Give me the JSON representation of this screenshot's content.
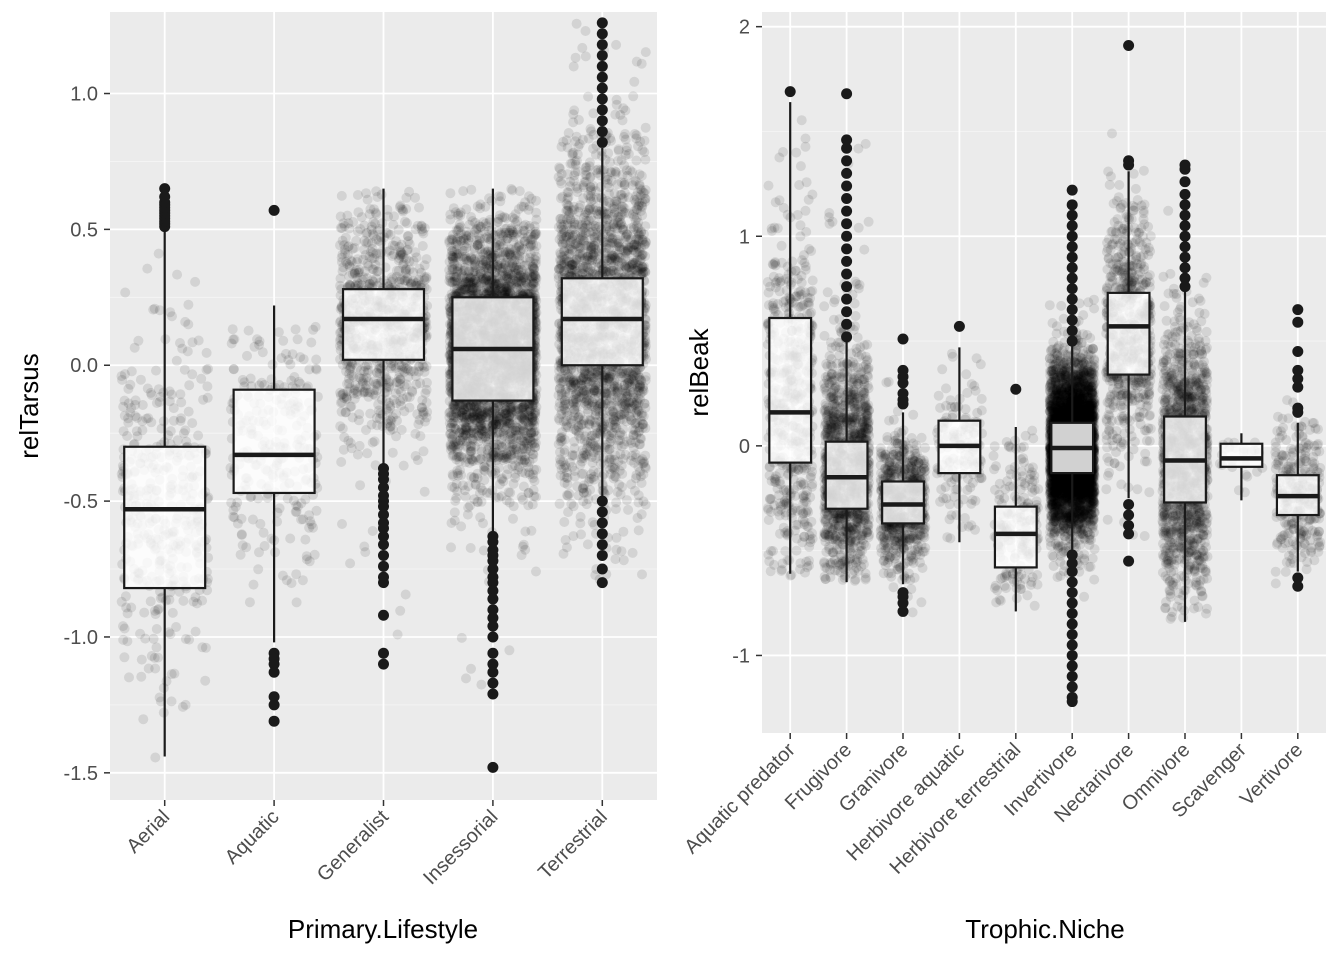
{
  "chart_data": [
    {
      "type": "boxplot",
      "xlabel": "Primary.Lifestyle",
      "ylabel": "relTarsus",
      "ylim": [
        -1.6,
        1.3
      ],
      "yticks": [
        -1.5,
        -1.0,
        -0.5,
        0.0,
        0.5,
        1.0
      ],
      "ytick_labels": [
        "-1.5",
        "-1.0",
        "-0.5",
        "0.0",
        "0.5",
        "1.0"
      ],
      "grid": true,
      "categories": [
        "Aerial",
        "Aquatic",
        "Generalist",
        "Insessorial",
        "Terrestrial"
      ],
      "boxes": [
        {
          "q1": -0.82,
          "median": -0.53,
          "q3": -0.3,
          "whisker_low": -1.44,
          "whisker_high": 0.5,
          "outliers": [
            0.51,
            0.52,
            0.53,
            0.54,
            0.55,
            0.56,
            0.57,
            0.58,
            0.59,
            0.6,
            0.62,
            0.65
          ],
          "jitter": {
            "n": 420,
            "min": -1.45,
            "max": 0.62,
            "center": -0.53,
            "spread": 0.32
          }
        },
        {
          "q1": -0.47,
          "median": -0.33,
          "q3": -0.09,
          "whisker_low": -1.02,
          "whisker_high": 0.22,
          "outliers": [
            0.57,
            -1.06,
            -1.08,
            -1.1,
            -1.13,
            -1.22,
            -1.25,
            -1.31
          ],
          "jitter": {
            "n": 260,
            "min": -1.3,
            "max": 0.22,
            "center": -0.3,
            "spread": 0.25
          }
        },
        {
          "q1": 0.02,
          "median": 0.17,
          "q3": 0.28,
          "whisker_low": -0.37,
          "whisker_high": 0.65,
          "outliers": [
            -0.38,
            -0.4,
            -0.42,
            -0.45,
            -0.48,
            -0.5,
            -0.52,
            -0.55,
            -0.58,
            -0.6,
            -0.63,
            -0.66,
            -0.7,
            -0.74,
            -0.78,
            -0.8,
            -0.92,
            -1.06,
            -1.1
          ],
          "jitter": {
            "n": 900,
            "min": -1.0,
            "max": 0.65,
            "center": 0.17,
            "spread": 0.22
          }
        },
        {
          "q1": -0.13,
          "median": 0.06,
          "q3": 0.25,
          "whisker_low": -0.62,
          "whisker_high": 0.65,
          "outliers": [
            -0.63,
            -0.65,
            -0.68,
            -0.7,
            -0.72,
            -0.75,
            -0.78,
            -0.8,
            -0.83,
            -0.86,
            -0.9,
            -0.93,
            -0.96,
            -1.0,
            -1.06,
            -1.1,
            -1.13,
            -1.17,
            -1.21,
            -1.48
          ],
          "jitter": {
            "n": 3200,
            "min": -1.2,
            "max": 0.65,
            "center": 0.06,
            "spread": 0.24
          }
        },
        {
          "q1": 0.0,
          "median": 0.17,
          "q3": 0.32,
          "whisker_low": -0.49,
          "whisker_high": 0.8,
          "outliers": [
            0.82,
            0.86,
            0.9,
            0.94,
            0.98,
            1.02,
            1.06,
            1.1,
            1.14,
            1.18,
            1.22,
            1.26,
            -0.5,
            -0.54,
            -0.58,
            -0.62,
            -0.66,
            -0.7,
            -0.75,
            -0.8
          ],
          "jitter": {
            "n": 2200,
            "min": -0.8,
            "max": 1.26,
            "center": 0.17,
            "spread": 0.32
          }
        }
      ]
    },
    {
      "type": "boxplot",
      "xlabel": "Trophic.Niche",
      "ylabel": "relBeak",
      "ylim": [
        -1.37,
        2.07
      ],
      "yticks": [
        -1,
        0,
        1,
        2
      ],
      "ytick_labels": [
        "-1",
        "0",
        "1",
        "2"
      ],
      "grid": true,
      "categories": [
        "Aquatic predator",
        "Frugivore",
        "Granivore",
        "Herbivore aquatic",
        "Herbivore terrestrial",
        "Invertivore",
        "Nectarivore",
        "Omnivore",
        "Scavenger",
        "Vertivore"
      ],
      "boxes": [
        {
          "q1": -0.08,
          "median": 0.16,
          "q3": 0.61,
          "whisker_low": -0.61,
          "whisker_high": 1.64,
          "outliers": [
            1.69
          ],
          "jitter": {
            "n": 550,
            "min": -0.62,
            "max": 1.66,
            "center": 0.2,
            "spread": 0.45
          }
        },
        {
          "q1": -0.3,
          "median": -0.15,
          "q3": 0.02,
          "whisker_low": -0.65,
          "whisker_high": 0.5,
          "outliers": [
            0.52,
            0.58,
            0.64,
            0.7,
            0.76,
            0.82,
            0.88,
            0.94,
            1.0,
            1.06,
            1.12,
            1.18,
            1.24,
            1.3,
            1.36,
            1.42,
            1.46,
            1.68
          ],
          "jitter": {
            "n": 1200,
            "min": -0.65,
            "max": 1.45,
            "center": -0.12,
            "spread": 0.28
          }
        },
        {
          "q1": -0.37,
          "median": -0.28,
          "q3": -0.17,
          "whisker_low": -0.66,
          "whisker_high": 0.16,
          "outliers": [
            0.2,
            0.22,
            0.25,
            0.3,
            0.33,
            0.36,
            0.51,
            -0.7,
            -0.72,
            -0.75,
            -0.79
          ],
          "jitter": {
            "n": 700,
            "min": -0.8,
            "max": 0.35,
            "center": -0.27,
            "spread": 0.16
          }
        },
        {
          "q1": -0.13,
          "median": 0.0,
          "q3": 0.12,
          "whisker_low": -0.46,
          "whisker_high": 0.47,
          "outliers": [
            0.57
          ],
          "jitter": {
            "n": 150,
            "min": -0.46,
            "max": 0.5,
            "center": 0.0,
            "spread": 0.18
          }
        },
        {
          "q1": -0.58,
          "median": -0.42,
          "q3": -0.29,
          "whisker_low": -0.79,
          "whisker_high": 0.09,
          "outliers": [
            0.27
          ],
          "jitter": {
            "n": 200,
            "min": -0.79,
            "max": 0.1,
            "center": -0.42,
            "spread": 0.2
          }
        },
        {
          "q1": -0.13,
          "median": -0.01,
          "q3": 0.11,
          "whisker_low": -0.5,
          "whisker_high": 0.48,
          "outliers": [
            0.5,
            0.55,
            0.6,
            0.65,
            0.7,
            0.75,
            0.8,
            0.85,
            0.9,
            0.95,
            1.0,
            1.05,
            1.1,
            1.15,
            1.22,
            -0.52,
            -0.56,
            -0.6,
            -0.65,
            -0.7,
            -0.75,
            -0.8,
            -0.85,
            -0.9,
            -0.95,
            -1.0,
            -1.05,
            -1.1,
            -1.15,
            -1.2,
            -1.22
          ],
          "jitter": {
            "n": 4200,
            "min": -1.22,
            "max": 1.2,
            "center": -0.01,
            "spread": 0.2
          }
        },
        {
          "q1": 0.34,
          "median": 0.57,
          "q3": 0.73,
          "whisker_low": -0.25,
          "whisker_high": 1.31,
          "outliers": [
            1.34,
            1.36,
            1.91,
            -0.28,
            -0.33,
            -0.38,
            -0.42,
            -0.55
          ],
          "jitter": {
            "n": 650,
            "min": -0.5,
            "max": 1.5,
            "center": 0.55,
            "spread": 0.3
          }
        },
        {
          "q1": -0.27,
          "median": -0.07,
          "q3": 0.14,
          "whisker_low": -0.84,
          "whisker_high": 0.74,
          "outliers": [
            0.76,
            0.8,
            0.85,
            0.9,
            0.95,
            1.0,
            1.05,
            1.1,
            1.15,
            1.2,
            1.26,
            1.32,
            1.34
          ],
          "jitter": {
            "n": 1300,
            "min": -0.84,
            "max": 1.32,
            "center": -0.07,
            "spread": 0.32
          }
        },
        {
          "q1": -0.1,
          "median": -0.06,
          "q3": 0.01,
          "whisker_low": -0.26,
          "whisker_high": 0.06,
          "outliers": [],
          "jitter": {
            "n": 25,
            "min": -0.25,
            "max": 0.06,
            "center": -0.05,
            "spread": 0.08
          }
        },
        {
          "q1": -0.33,
          "median": -0.24,
          "q3": -0.14,
          "whisker_low": -0.6,
          "whisker_high": 0.11,
          "outliers": [
            0.16,
            0.18,
            0.28,
            0.32,
            0.36,
            0.45,
            0.59,
            0.65,
            -0.63,
            -0.67
          ],
          "jitter": {
            "n": 300,
            "min": -0.66,
            "max": 0.62,
            "center": -0.24,
            "spread": 0.18
          }
        }
      ]
    }
  ],
  "colors": {
    "panel_bg": "#ebebeb",
    "grid_major": "#ffffff",
    "box_fill": "#ffffff",
    "ink": "#1a1a1a",
    "tick_text": "#4d4d4d",
    "title_text": "#000000"
  }
}
